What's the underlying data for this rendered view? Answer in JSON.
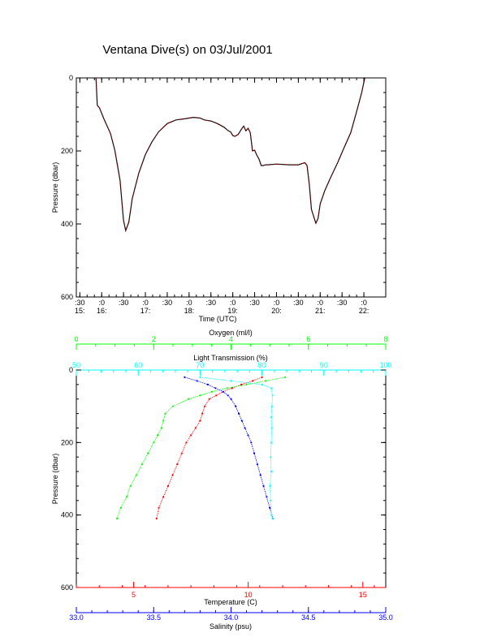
{
  "page": {
    "title": "Ventana Dive(s) on 03/Jul/2001"
  },
  "colors": {
    "axis": "#000000",
    "pressure_trace": "#000000",
    "pressure_trace_overlay": "#ff0000",
    "temperature": "#ff0000",
    "salinity": "#0000ff",
    "oxygen": "#00ff00",
    "light_transmission": "#00ffff",
    "background": "#ffffff"
  },
  "chart_data": [
    {
      "type": "line",
      "ylabel": "Pressure (dbar)",
      "xlabel": "Time (UTC)",
      "ylim": [
        600,
        0
      ],
      "xlim": [
        15.42,
        22.5
      ],
      "y_ticks": [
        0,
        200,
        400,
        600
      ],
      "x_ticks": [
        {
          "t": 15.5,
          "top": ":30",
          "bottom": "15:"
        },
        {
          "t": 16.0,
          "top": ":0",
          "bottom": "16:"
        },
        {
          "t": 16.5,
          "top": ":30",
          "bottom": ""
        },
        {
          "t": 17.0,
          "top": ":0",
          "bottom": "17:"
        },
        {
          "t": 17.5,
          "top": ":30",
          "bottom": ""
        },
        {
          "t": 18.0,
          "top": ":0",
          "bottom": "18:"
        },
        {
          "t": 18.5,
          "top": ":30",
          "bottom": ""
        },
        {
          "t": 19.0,
          "top": ":0",
          "bottom": "19:"
        },
        {
          "t": 19.5,
          "top": ":30",
          "bottom": ""
        },
        {
          "t": 20.0,
          "top": ":0",
          "bottom": "20:"
        },
        {
          "t": 20.5,
          "top": ":30",
          "bottom": ""
        },
        {
          "t": 21.0,
          "top": ":0",
          "bottom": "21:"
        },
        {
          "t": 21.5,
          "top": ":30",
          "bottom": ""
        },
        {
          "t": 22.0,
          "top": ":0",
          "bottom": "22:"
        }
      ],
      "series": [
        {
          "values_time_hours": [
            15.87,
            15.9,
            15.95,
            16.05,
            16.2,
            16.3,
            16.42,
            16.5,
            16.55,
            16.62,
            16.7,
            16.85,
            17.0,
            17.15,
            17.3,
            17.5,
            17.7,
            17.9,
            18.1,
            18.25,
            18.35,
            18.5,
            18.65,
            18.8,
            18.9,
            18.95,
            19.0,
            19.05,
            19.12,
            19.15,
            19.2,
            19.25,
            19.3,
            19.35,
            19.4,
            19.45,
            19.5,
            19.55,
            19.6,
            19.65,
            19.7,
            19.75,
            19.8,
            20.0,
            20.3,
            20.5,
            20.65,
            20.7,
            20.75,
            20.8,
            20.9,
            20.95,
            21.0,
            21.1,
            21.25,
            21.4,
            21.55,
            21.7,
            21.85,
            21.95,
            22.02
          ],
          "values_pressure_dbar": [
            0,
            75,
            82,
            112,
            152,
            198,
            280,
            390,
            418,
            395,
            330,
            260,
            210,
            175,
            148,
            125,
            115,
            112,
            108,
            110,
            115,
            118,
            125,
            135,
            145,
            148,
            158,
            160,
            155,
            150,
            140,
            132,
            145,
            138,
            150,
            200,
            198,
            212,
            222,
            240,
            240,
            238,
            238,
            236,
            238,
            238,
            232,
            240,
            290,
            360,
            398,
            385,
            345,
            310,
            270,
            232,
            190,
            150,
            85,
            40,
            0
          ]
        }
      ]
    },
    {
      "type": "scatter",
      "ylabel": "Pressure (dbar)",
      "ylim": [
        600,
        0
      ],
      "y_ticks": [
        0,
        200,
        400,
        600
      ],
      "axes": [
        {
          "name": "Temperature (C)",
          "position": "bottom",
          "range": [
            2.5,
            16
          ],
          "ticks": [
            5,
            10,
            15
          ]
        },
        {
          "name": "Salinity (psu)",
          "position": "bottom",
          "range": [
            33.0,
            35.0
          ],
          "ticks": [
            "33.0",
            "33.5",
            "34.0",
            "34.5",
            "35.0"
          ]
        },
        {
          "name": "Oxygen (ml/l)",
          "position": "top",
          "range": [
            0,
            8
          ],
          "ticks": [
            0,
            2,
            4,
            6,
            8
          ]
        },
        {
          "name": "Light Transmission (%)",
          "position": "top",
          "range": [
            50,
            100
          ],
          "ticks": [
            50,
            60,
            70,
            80,
            90,
            100
          ]
        }
      ],
      "series": [
        {
          "variable": "Temperature (C)",
          "points": [
            [
              10.6,
              20
            ],
            [
              10.2,
              30
            ],
            [
              9.7,
              40
            ],
            [
              9.3,
              50
            ],
            [
              8.9,
              60
            ],
            [
              8.6,
              70
            ],
            [
              8.3,
              80
            ],
            [
              8.1,
              100
            ],
            [
              8.0,
              120
            ],
            [
              7.9,
              140
            ],
            [
              7.7,
              160
            ],
            [
              7.5,
              180
            ],
            [
              7.3,
              200
            ],
            [
              7.1,
              230
            ],
            [
              6.9,
              260
            ],
            [
              6.7,
              290
            ],
            [
              6.5,
              320
            ],
            [
              6.3,
              350
            ],
            [
              6.1,
              380
            ],
            [
              6.0,
              410
            ]
          ]
        },
        {
          "variable": "Salinity (psu)",
          "points": [
            [
              33.7,
              20
            ],
            [
              33.78,
              30
            ],
            [
              33.85,
              40
            ],
            [
              33.9,
              50
            ],
            [
              33.95,
              60
            ],
            [
              33.98,
              70
            ],
            [
              34.0,
              80
            ],
            [
              34.03,
              100
            ],
            [
              34.05,
              120
            ],
            [
              34.07,
              140
            ],
            [
              34.09,
              160
            ],
            [
              34.11,
              180
            ],
            [
              34.13,
              200
            ],
            [
              34.15,
              230
            ],
            [
              34.17,
              260
            ],
            [
              34.19,
              290
            ],
            [
              34.21,
              320
            ],
            [
              34.23,
              350
            ],
            [
              34.25,
              380
            ],
            [
              34.27,
              410
            ]
          ]
        },
        {
          "variable": "Oxygen (ml/l)",
          "points": [
            [
              5.4,
              20
            ],
            [
              4.9,
              30
            ],
            [
              4.4,
              40
            ],
            [
              3.9,
              50
            ],
            [
              3.5,
              60
            ],
            [
              3.2,
              70
            ],
            [
              2.9,
              80
            ],
            [
              2.5,
              100
            ],
            [
              2.3,
              120
            ],
            [
              2.25,
              140
            ],
            [
              2.2,
              160
            ],
            [
              2.1,
              180
            ],
            [
              2.0,
              200
            ],
            [
              1.85,
              230
            ],
            [
              1.7,
              260
            ],
            [
              1.55,
              290
            ],
            [
              1.4,
              320
            ],
            [
              1.3,
              350
            ],
            [
              1.15,
              380
            ],
            [
              1.05,
              410
            ]
          ]
        },
        {
          "variable": "Light Transmission (%)",
          "points": [
            [
              70,
              20
            ],
            [
              75,
              30
            ],
            [
              80,
              40
            ],
            [
              81.5,
              50
            ],
            [
              81.7,
              70
            ],
            [
              81.6,
              100
            ],
            [
              81.5,
              130
            ],
            [
              81.6,
              160
            ],
            [
              81.5,
              200
            ],
            [
              81.4,
              240
            ],
            [
              81.5,
              280
            ],
            [
              81.3,
              320
            ],
            [
              81.4,
              360
            ],
            [
              81.5,
              400
            ],
            [
              81.7,
              410
            ]
          ]
        }
      ]
    }
  ]
}
